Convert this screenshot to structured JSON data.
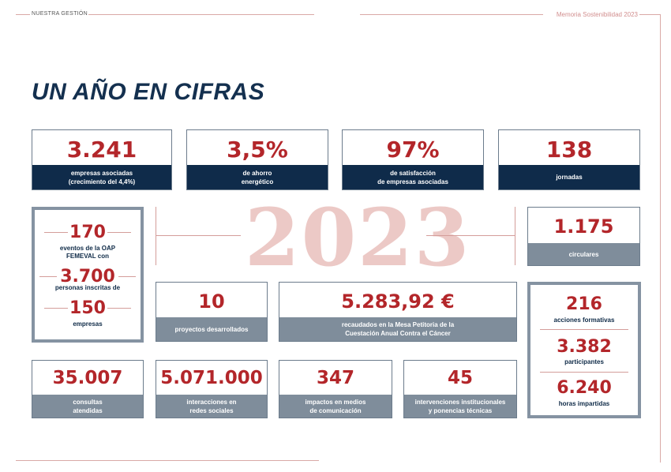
{
  "header": {
    "section": "NUESTRA GESTIÓN",
    "report": "Memoria Sostenibilidad 2023"
  },
  "title": "UN AÑO EN CIFRAS",
  "year": "2023",
  "top_cards": [
    {
      "value": "3.241",
      "label": "empresas asociadas\n(crecimiento del 4,4%)"
    },
    {
      "value": "3,5%",
      "label": "de ahorro\nenergético"
    },
    {
      "value": "97%",
      "label": "de satisfacción\nde empresas asociadas"
    },
    {
      "value": "138",
      "label": "jornadas"
    }
  ],
  "left_stack": [
    {
      "value": "170",
      "label": "eventos de la OAP\nFEMEVAL con"
    },
    {
      "value": "3.700",
      "label": "personas inscritas de"
    },
    {
      "value": "150",
      "label": "empresas"
    }
  ],
  "circulares": {
    "value": "1.175",
    "label": "circulares"
  },
  "proyectos": {
    "value": "10",
    "label": "proyectos desarrollados"
  },
  "mesa": {
    "value": "5.283,92 €",
    "label": "recaudados en la Mesa Petitoria de la\nCuestación Anual Contra el Cáncer"
  },
  "right_stack": [
    {
      "value": "216",
      "label": "acciones formativas"
    },
    {
      "value": "3.382",
      "label": "participantes"
    },
    {
      "value": "6.240",
      "label": "horas impartidas"
    }
  ],
  "bottom_cards": [
    {
      "value": "35.007",
      "label": "consultas\natendidas"
    },
    {
      "value": "5.071.000",
      "label": "interacciones en\nredes sociales"
    },
    {
      "value": "347",
      "label": "impactos en medios\nde comunicación"
    },
    {
      "value": "45",
      "label": "intervenciones institucionales\ny ponencias técnicas"
    }
  ],
  "colors": {
    "navy": "#0f2b4a",
    "red": "#b3262a",
    "grey": "#7f8d9b",
    "pink": "#ecc9c6"
  }
}
